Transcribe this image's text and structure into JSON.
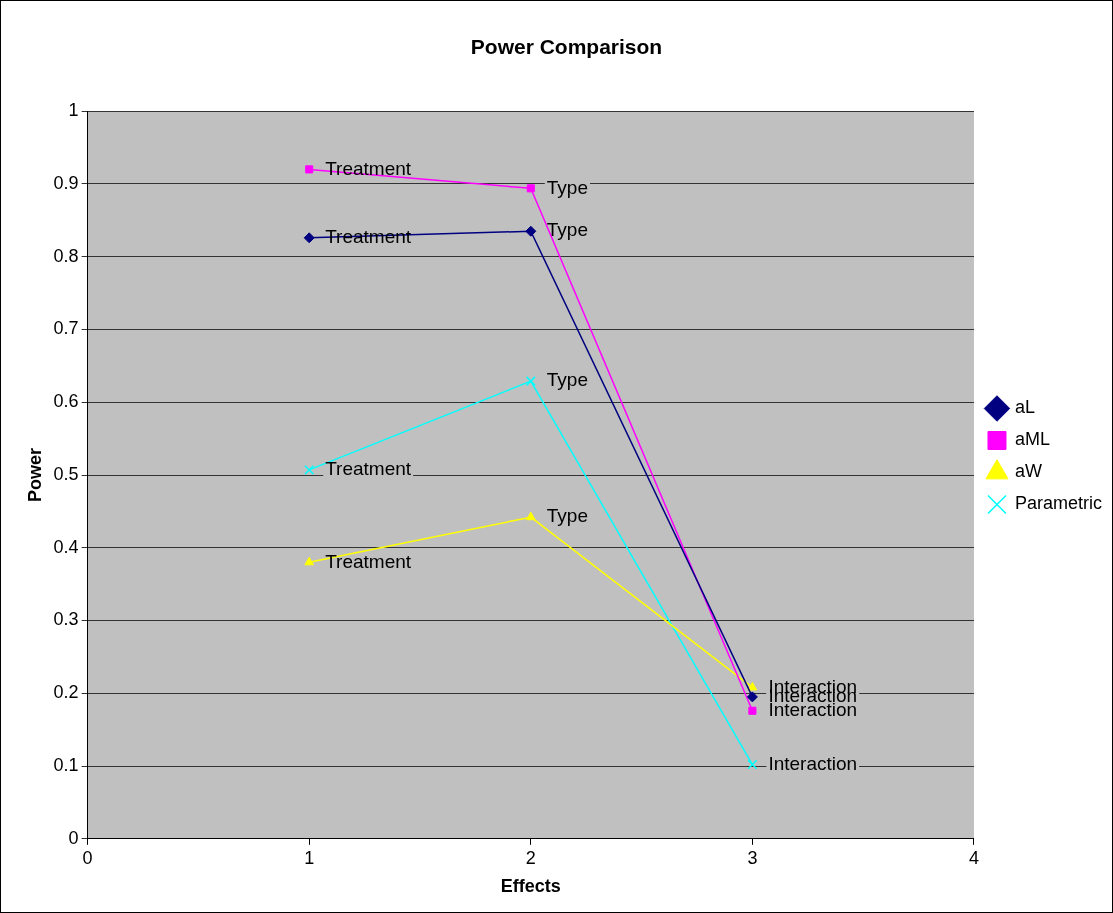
{
  "chart_data": {
    "type": "line",
    "title": "Power Comparison",
    "xlabel": "Effects",
    "ylabel": "Power",
    "x": [
      1,
      2,
      3
    ],
    "xlim": [
      0,
      4
    ],
    "xticks": [
      0,
      1,
      2,
      3,
      4
    ],
    "ylim": [
      0,
      1
    ],
    "yticks": [
      0,
      0.1,
      0.2,
      0.3,
      0.4,
      0.5,
      0.6,
      0.7,
      0.8,
      0.9,
      1
    ],
    "grid": "y",
    "legend": "right",
    "line_style": "solid",
    "series": [
      {
        "name": "aL",
        "color": "#000080",
        "marker": "diamond",
        "values": [
          0.826,
          0.835,
          0.195
        ]
      },
      {
        "name": "aML",
        "color": "#ff00ff",
        "marker": "square",
        "values": [
          0.92,
          0.894,
          0.176
        ]
      },
      {
        "name": "aW",
        "color": "#ffff00",
        "marker": "triangle",
        "values": [
          0.38,
          0.442,
          0.208
        ]
      },
      {
        "name": "Parametric",
        "color": "#00ffff",
        "marker": "cross",
        "values": [
          0.507,
          0.629,
          0.102
        ]
      }
    ],
    "annotations": [
      {
        "text": "Treatment",
        "x": 1,
        "y": 0.826
      },
      {
        "text": "Type",
        "x": 2,
        "y": 0.835
      },
      {
        "text": "Interaction",
        "x": 3,
        "y": 0.195
      },
      {
        "text": "Treatment",
        "x": 1,
        "y": 0.92
      },
      {
        "text": "Type",
        "x": 2,
        "y": 0.894
      },
      {
        "text": "Interaction",
        "x": 3,
        "y": 0.176
      },
      {
        "text": "Treatment",
        "x": 1,
        "y": 0.38
      },
      {
        "text": "Type",
        "x": 2,
        "y": 0.442
      },
      {
        "text": "Interaction",
        "x": 3,
        "y": 0.208
      },
      {
        "text": "Treatment",
        "x": 1,
        "y": 0.507
      },
      {
        "text": "Type",
        "x": 2,
        "y": 0.629
      },
      {
        "text": "Interaction",
        "x": 3,
        "y": 0.102
      }
    ]
  }
}
